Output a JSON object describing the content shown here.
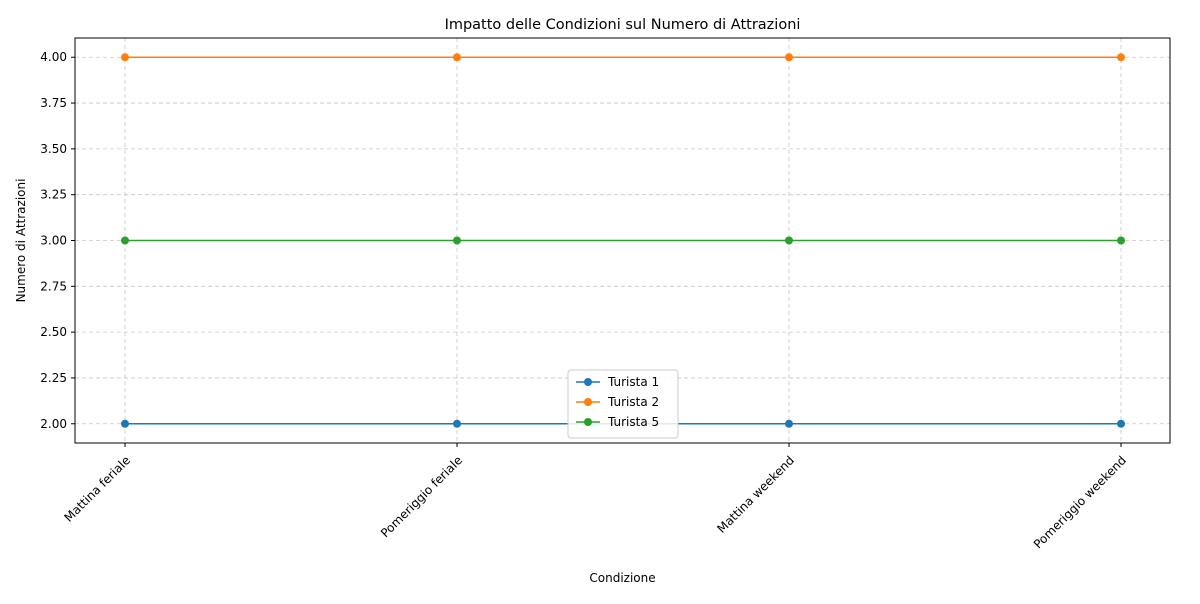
{
  "chart_data": {
    "type": "line",
    "title": "Impatto delle Condizioni sul Numero di Attrazioni",
    "xlabel": "Condizione",
    "ylabel": "Numero di Attrazioni",
    "categories": [
      "Mattina feriale",
      "Pomeriggio feriale",
      "Mattina weekend",
      "Pomeriggio weekend"
    ],
    "ylim": [
      1.895,
      4.105
    ],
    "yticks": [
      2.0,
      2.25,
      2.5,
      2.75,
      3.0,
      3.25,
      3.5,
      3.75,
      4.0
    ],
    "ytick_labels": [
      "2.00",
      "2.25",
      "2.50",
      "2.75",
      "3.00",
      "3.25",
      "3.50",
      "3.75",
      "4.00"
    ],
    "grid": true,
    "legend_position": "bottom-center",
    "series": [
      {
        "name": "Turista 1",
        "color": "#1f77b4",
        "values": [
          2,
          2,
          2,
          2
        ]
      },
      {
        "name": "Turista 2",
        "color": "#ff7f0e",
        "values": [
          4,
          4,
          4,
          4
        ]
      },
      {
        "name": "Turista 5",
        "color": "#2ca02c",
        "values": [
          3,
          3,
          3,
          3
        ]
      }
    ]
  }
}
